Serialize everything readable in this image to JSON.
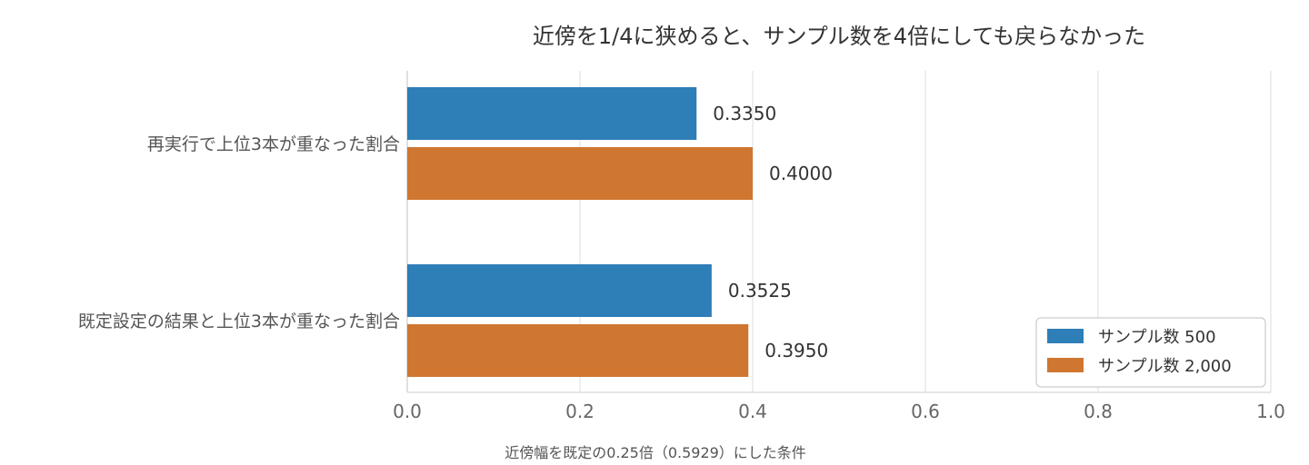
{
  "chart_data": {
    "type": "bar",
    "orientation": "horizontal",
    "title": "近傍を1/4に狭めると、サンプル数を4倍にしても戻らなかった",
    "xlabel": "近傍幅を既定の0.25倍（0.5929）にした条件",
    "ylabel": "",
    "categories": [
      "再実行で上位3本が重なった割合",
      "既定設定の結果と上位3本が重なった割合"
    ],
    "xlim": [
      0,
      1
    ],
    "x_ticks": [
      "0.0",
      "0.2",
      "0.4",
      "0.6",
      "0.8",
      "1.0"
    ],
    "grid": "x",
    "legend_position": "lower-right",
    "series": [
      {
        "name": "サンプル数 500",
        "color": "#2e7eb8",
        "values": [
          0.335,
          0.3525
        ],
        "labels": [
          "0.3350",
          "0.3525"
        ]
      },
      {
        "name": "サンプル数 2,000",
        "color": "#cf7630",
        "values": [
          0.4,
          0.395
        ],
        "labels": [
          "0.4000",
          "0.3950"
        ]
      }
    ]
  }
}
